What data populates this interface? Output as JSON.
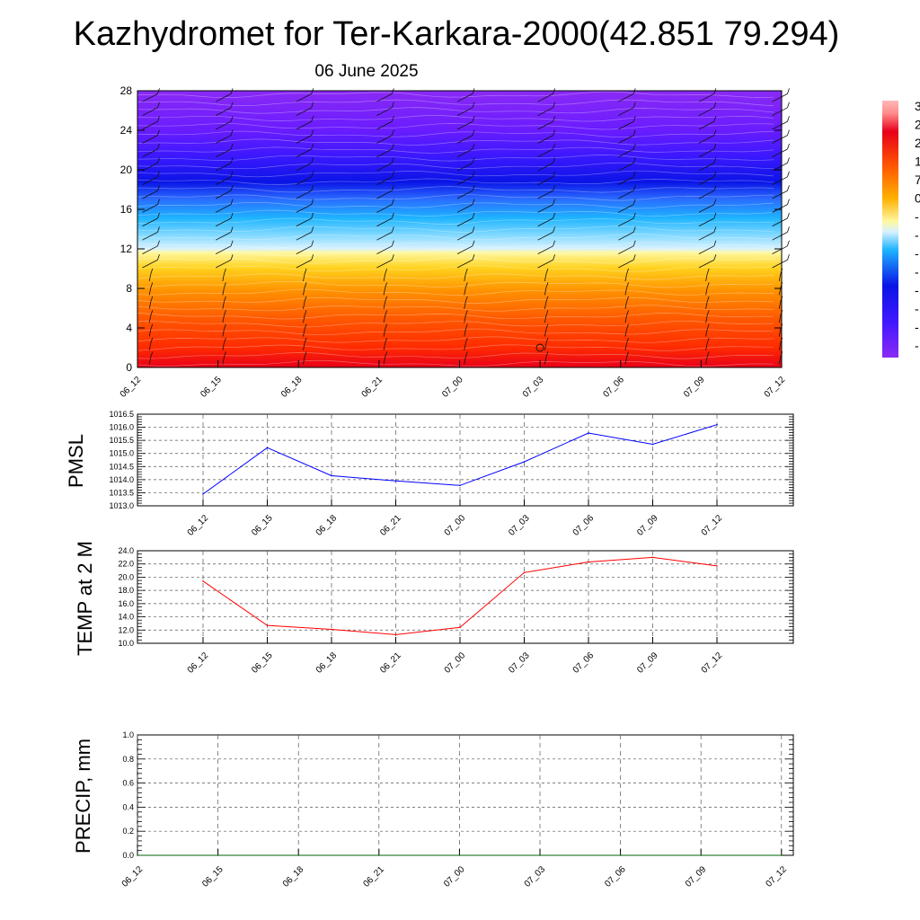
{
  "title": "Kazhydromet for Ter-Karkara-2000(42.851 79.294)",
  "subtitle": "06 June 2025",
  "colors": {
    "pmsl_line": "#0000ff",
    "temp_line": "#ff0000",
    "precip_line": "#006400",
    "grid": "#555555"
  },
  "chart_data": [
    {
      "type": "heatmap",
      "name": "cross-section",
      "ylim": [
        0,
        28
      ],
      "yticks": [
        "0",
        "4",
        "8",
        "12",
        "16",
        "20",
        "24",
        "28"
      ],
      "xticks": [
        "06_12",
        "06_15",
        "06_18",
        "06_21",
        "07_00",
        "07_03",
        "07_06",
        "07_09",
        "07_12"
      ],
      "colorbar_visible_labels": [
        "3",
        "2",
        "2",
        "1",
        "7",
        "0",
        "-",
        "-",
        "-",
        "-",
        "-",
        "-",
        "-",
        "-"
      ],
      "overlay": "wind barbs"
    },
    {
      "type": "line",
      "name": "pmsl",
      "ylabel": "PMSL",
      "ylim": [
        1013.0,
        1016.5
      ],
      "yticks": [
        "1013.0",
        "1013.5",
        "1014.0",
        "1014.5",
        "1015.0",
        "1015.5",
        "1016.0",
        "1016.5"
      ],
      "categories": [
        "06_12",
        "06_15",
        "06_18",
        "06_21",
        "07_00",
        "07_03",
        "07_06",
        "07_09",
        "07_12"
      ],
      "values": [
        1013.45,
        1015.22,
        1014.15,
        1013.95,
        1013.78,
        1014.68,
        1015.78,
        1015.35,
        1016.1
      ]
    },
    {
      "type": "line",
      "name": "temp",
      "ylabel": "TEMP at 2 M",
      "ylim": [
        10.0,
        24.0
      ],
      "yticks": [
        "10.0",
        "12.0",
        "14.0",
        "16.0",
        "18.0",
        "20.0",
        "22.0",
        "24.0"
      ],
      "categories": [
        "06_12",
        "06_15",
        "06_18",
        "06_21",
        "07_00",
        "07_03",
        "07_06",
        "07_09",
        "07_12"
      ],
      "values": [
        19.4,
        12.7,
        12.1,
        11.3,
        12.4,
        20.7,
        22.3,
        23.0,
        21.7
      ]
    },
    {
      "type": "line",
      "name": "precip",
      "ylabel": "PRECIP, mm",
      "ylim": [
        0.0,
        1.0
      ],
      "yticks": [
        "0.0",
        "0.2",
        "0.4",
        "0.6",
        "0.8",
        "1.0"
      ],
      "categories": [
        "06_12",
        "06_15",
        "06_18",
        "06_21",
        "07_00",
        "07_03",
        "07_06",
        "07_09",
        "07_12"
      ],
      "values": [
        0,
        0,
        0,
        0,
        0,
        0,
        0,
        0,
        0
      ]
    }
  ]
}
